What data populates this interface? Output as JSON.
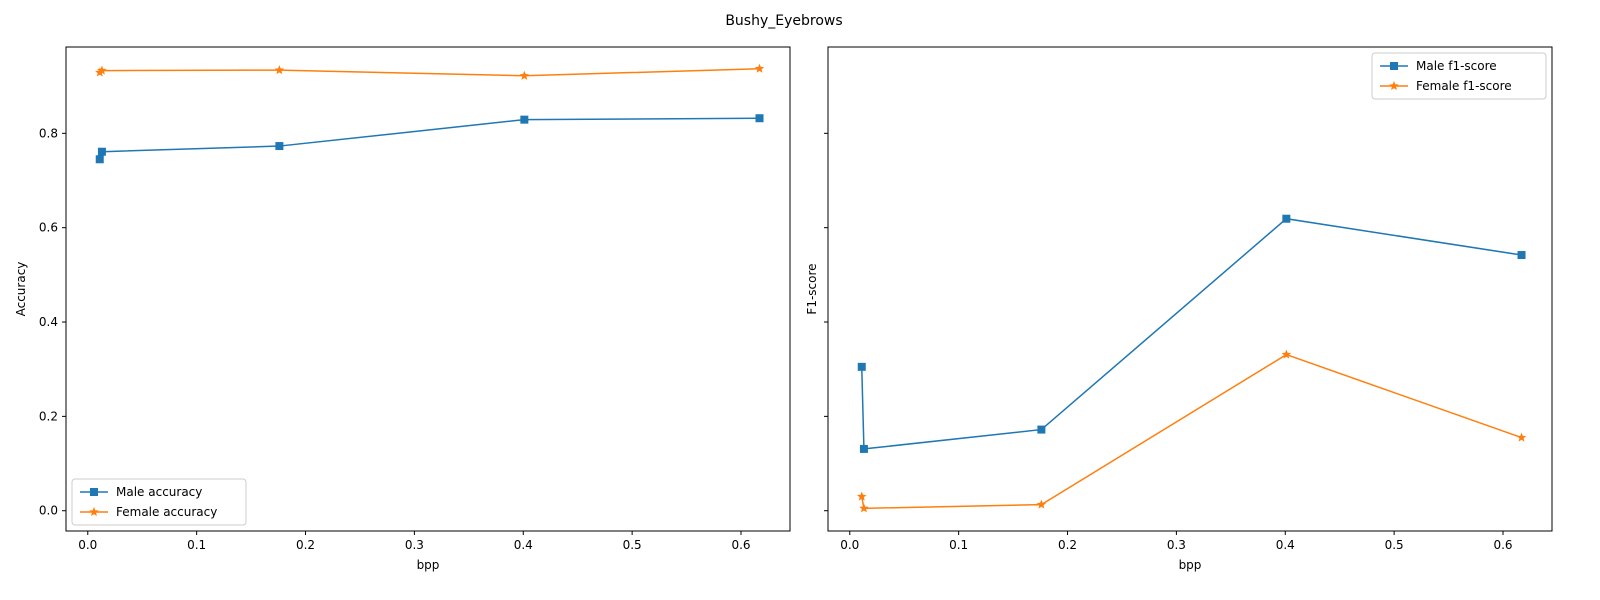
{
  "figure": {
    "title": "Bushy_Eyebrows"
  },
  "colors": {
    "male": "#1f77b4",
    "female": "#ff7f0e",
    "axes": "#000000",
    "legend_border": "#cccccc"
  },
  "chart_data": [
    {
      "type": "line",
      "title": "",
      "xlabel": "bpp",
      "ylabel": "Accuracy",
      "xlim": [
        -0.02,
        0.645
      ],
      "ylim": [
        -0.043,
        0.983
      ],
      "xticks": [
        0.0,
        0.1,
        0.2,
        0.3,
        0.4,
        0.5,
        0.6
      ],
      "xtick_labels": [
        "0.0",
        "0.1",
        "0.2",
        "0.3",
        "0.4",
        "0.5",
        "0.6"
      ],
      "yticks": [
        0.0,
        0.2,
        0.4,
        0.6,
        0.8
      ],
      "ytick_labels": [
        "0.0",
        "0.2",
        "0.4",
        "0.6",
        "0.8"
      ],
      "show_ytick_labels": true,
      "grid": false,
      "legend_position": "lower-left",
      "series": [
        {
          "name": "Male accuracy",
          "color": "#1f77b4",
          "marker": "square",
          "x": [
            0.011,
            0.013,
            0.176,
            0.401,
            0.617
          ],
          "y": [
            0.745,
            0.761,
            0.773,
            0.829,
            0.832
          ]
        },
        {
          "name": "Female accuracy",
          "color": "#ff7f0e",
          "marker": "star",
          "x": [
            0.011,
            0.013,
            0.176,
            0.401,
            0.617
          ],
          "y": [
            0.929,
            0.933,
            0.934,
            0.922,
            0.937
          ]
        }
      ]
    },
    {
      "type": "line",
      "title": "",
      "xlabel": "bpp",
      "ylabel": "F1-score",
      "xlim": [
        -0.02,
        0.645
      ],
      "ylim": [
        -0.043,
        0.983
      ],
      "xticks": [
        0.0,
        0.1,
        0.2,
        0.3,
        0.4,
        0.5,
        0.6
      ],
      "xtick_labels": [
        "0.0",
        "0.1",
        "0.2",
        "0.3",
        "0.4",
        "0.5",
        "0.6"
      ],
      "yticks": [
        0.0,
        0.2,
        0.4,
        0.6,
        0.8
      ],
      "ytick_labels": [],
      "show_ytick_labels": false,
      "grid": false,
      "legend_position": "upper-right",
      "series": [
        {
          "name": "Male f1-score",
          "color": "#1f77b4",
          "marker": "square",
          "x": [
            0.011,
            0.013,
            0.176,
            0.401,
            0.617
          ],
          "y": [
            0.305,
            0.131,
            0.172,
            0.619,
            0.542
          ]
        },
        {
          "name": "Female f1-score",
          "color": "#ff7f0e",
          "marker": "star",
          "x": [
            0.011,
            0.013,
            0.176,
            0.401,
            0.617
          ],
          "y": [
            0.03,
            0.005,
            0.013,
            0.331,
            0.155
          ]
        }
      ]
    }
  ]
}
